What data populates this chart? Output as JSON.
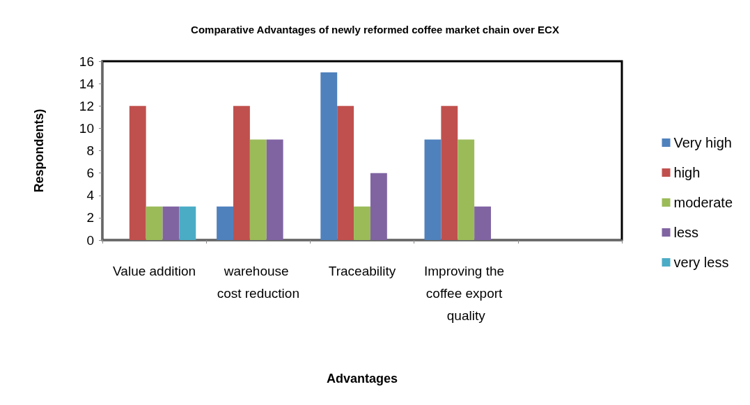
{
  "chart_data": {
    "type": "bar",
    "title": "Comparative Advantages of newly reformed coffee market chain over ECX",
    "xlabel": "Advantages",
    "ylabel": "Respondents)",
    "categories": [
      "Value addition",
      "warehouse cost reduction",
      "Traceability",
      "Improving the coffee export quality",
      null
    ],
    "series": [
      {
        "name": "Very high",
        "color": "#4f81bd",
        "values": [
          0,
          3,
          15,
          9,
          null
        ]
      },
      {
        "name": "high",
        "color": "#c0504d",
        "values": [
          12,
          12,
          12,
          12,
          null
        ]
      },
      {
        "name": "moderate",
        "color": "#9bbb59",
        "values": [
          3,
          9,
          3,
          9,
          null
        ]
      },
      {
        "name": "less",
        "color": "#8064a2",
        "values": [
          3,
          9,
          6,
          3,
          null
        ]
      },
      {
        "name": "very less",
        "color": "#4bacc6",
        "values": [
          3,
          0,
          0,
          0,
          null
        ]
      }
    ],
    "ylim": [
      0,
      16
    ],
    "yticks": [
      0,
      2,
      4,
      6,
      8,
      10,
      12,
      14,
      16
    ],
    "grid": false,
    "legend": "right"
  }
}
